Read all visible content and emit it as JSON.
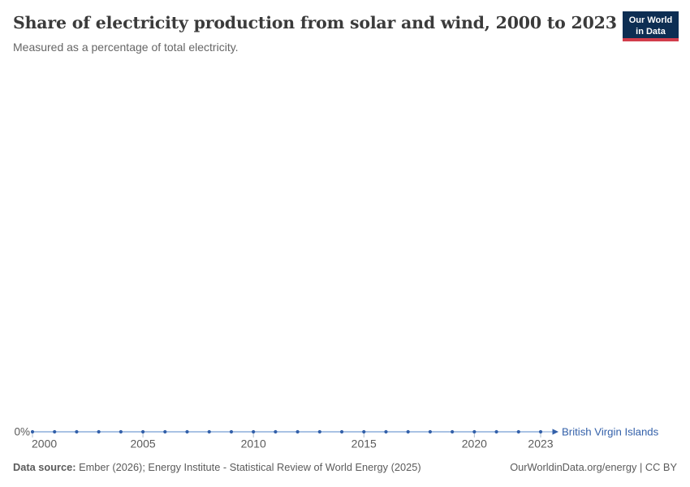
{
  "header": {
    "title": "Share of electricity production from solar and wind, 2000 to 2023",
    "subtitle": "Measured as a percentage of total electricity.",
    "logo": {
      "line1": "Our World",
      "line2": "in Data"
    }
  },
  "chart_data": {
    "type": "line",
    "title": "Share of electricity production from solar and wind, 2000 to 2023",
    "subtitle": "Measured as a percentage of total electricity.",
    "xlabel": "",
    "ylabel": "",
    "xlim": [
      2000,
      2023
    ],
    "grid": false,
    "legend_position": "end-of-line",
    "x": [
      2000,
      2001,
      2002,
      2003,
      2004,
      2005,
      2006,
      2007,
      2008,
      2009,
      2010,
      2011,
      2012,
      2013,
      2014,
      2015,
      2016,
      2017,
      2018,
      2019,
      2020,
      2021,
      2022,
      2023
    ],
    "series": [
      {
        "name": "British Virgin Islands",
        "values": [
          0,
          0,
          0,
          0,
          0,
          0,
          0,
          0,
          0,
          0,
          0,
          0,
          0,
          0,
          0,
          0,
          0,
          0,
          0,
          0,
          0,
          0,
          0,
          0
        ],
        "color": "#3360a9",
        "line_tint": "#a9c2e4"
      }
    ],
    "x_ticks": [
      2000,
      2005,
      2010,
      2015,
      2020,
      2023
    ],
    "y_axis": {
      "labels": [
        "0%"
      ],
      "min_label": "0%",
      "label_color": "#5b5b5b"
    },
    "tick_color": "#aebccd",
    "axis_label_color": "#5b5b5b"
  },
  "footer": {
    "datasource_label": "Data source:",
    "datasource_text": " Ember (2026); Energy Institute - Statistical Review of World Energy (2025)",
    "link_text": "OurWorldinData.org/energy | CC BY"
  }
}
